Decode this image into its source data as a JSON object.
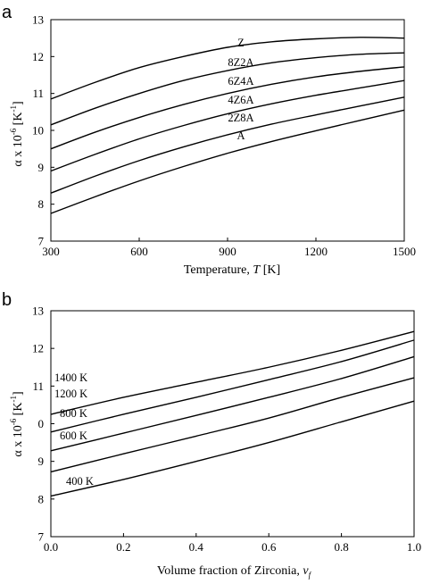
{
  "chart_data": [
    {
      "panel_label": "a",
      "type": "line",
      "xlabel_main": "Temperature, ",
      "xlabel_italic": "T",
      "xlabel_unit": " [K]",
      "ylabel_main": "α x 10",
      "ylabel_exp": "-6",
      "ylabel_unit": " [K",
      "ylabel_unit_exp": "-1",
      "ylabel_close": "]",
      "xlim": [
        300,
        1500
      ],
      "ylim": [
        7,
        13
      ],
      "xticks": [
        "300",
        "600",
        "900",
        "1200",
        "1500"
      ],
      "yticks": [
        "7",
        "8",
        "9",
        "10",
        "11",
        "12",
        "13"
      ],
      "series": [
        {
          "name": "Z",
          "x": [
            300,
            450,
            600,
            750,
            900,
            1050,
            1200,
            1350,
            1500
          ],
          "y": [
            10.85,
            11.3,
            11.7,
            12.0,
            12.25,
            12.4,
            12.48,
            12.52,
            12.5
          ]
        },
        {
          "name": "8Z2A",
          "x": [
            300,
            450,
            600,
            750,
            900,
            1050,
            1200,
            1350,
            1500
          ],
          "y": [
            10.15,
            10.6,
            11.0,
            11.35,
            11.62,
            11.83,
            11.97,
            12.06,
            12.1
          ]
        },
        {
          "name": "6Z4A",
          "x": [
            300,
            450,
            600,
            750,
            900,
            1050,
            1200,
            1350,
            1500
          ],
          "y": [
            9.5,
            9.95,
            10.35,
            10.7,
            11.0,
            11.25,
            11.45,
            11.6,
            11.72
          ]
        },
        {
          "name": "4Z6A",
          "x": [
            300,
            450,
            600,
            750,
            900,
            1050,
            1200,
            1350,
            1500
          ],
          "y": [
            8.9,
            9.35,
            9.77,
            10.13,
            10.45,
            10.72,
            10.95,
            11.15,
            11.35
          ]
        },
        {
          "name": "2Z8A",
          "x": [
            300,
            450,
            600,
            750,
            900,
            1050,
            1200,
            1350,
            1500
          ],
          "y": [
            8.3,
            8.76,
            9.18,
            9.55,
            9.88,
            10.17,
            10.42,
            10.66,
            10.9
          ]
        },
        {
          "name": "A",
          "x": [
            300,
            450,
            600,
            750,
            900,
            1050,
            1200,
            1350,
            1500
          ],
          "y": [
            7.75,
            8.2,
            8.63,
            9.02,
            9.38,
            9.7,
            9.99,
            10.27,
            10.55
          ]
        }
      ]
    },
    {
      "panel_label": "b",
      "type": "line",
      "xlabel_main": "Volume fraction of Zirconia, ",
      "xlabel_italic": "v",
      "xlabel_sub": "f",
      "ylabel_main": "α x 10",
      "ylabel_exp": "-6",
      "ylabel_unit": " [K",
      "ylabel_unit_exp": "-1",
      "ylabel_close": "]",
      "xlim": [
        0,
        1
      ],
      "ylim": [
        7,
        13
      ],
      "xticks": [
        "0.0",
        "0.2",
        "0.4",
        "0.6",
        "0.8",
        "1.0"
      ],
      "yticks": [
        "7",
        "8",
        "9",
        "10",
        "11",
        "12",
        "13"
      ],
      "ytick_label_overrides": {
        "10": "0"
      },
      "series": [
        {
          "name": "1400 K",
          "x": [
            0,
            0.2,
            0.4,
            0.6,
            0.8,
            1.0
          ],
          "y": [
            10.25,
            10.7,
            11.1,
            11.5,
            11.95,
            12.45
          ]
        },
        {
          "name": "1200 K",
          "x": [
            0,
            0.2,
            0.4,
            0.6,
            0.8,
            1.0
          ],
          "y": [
            9.78,
            10.25,
            10.7,
            11.17,
            11.65,
            12.22
          ]
        },
        {
          "name": "800 K",
          "x": [
            0,
            0.2,
            0.4,
            0.6,
            0.8,
            1.0
          ],
          "y": [
            9.28,
            9.75,
            10.22,
            10.7,
            11.2,
            11.78
          ]
        },
        {
          "name": "600 K",
          "x": [
            0,
            0.2,
            0.4,
            0.6,
            0.8,
            1.0
          ],
          "y": [
            8.72,
            9.2,
            9.67,
            10.15,
            10.7,
            11.22
          ]
        },
        {
          "name": "400 K",
          "x": [
            0,
            0.2,
            0.4,
            0.6,
            0.8,
            1.0
          ],
          "y": [
            8.08,
            8.52,
            9.0,
            9.5,
            10.05,
            10.6
          ]
        }
      ]
    }
  ]
}
